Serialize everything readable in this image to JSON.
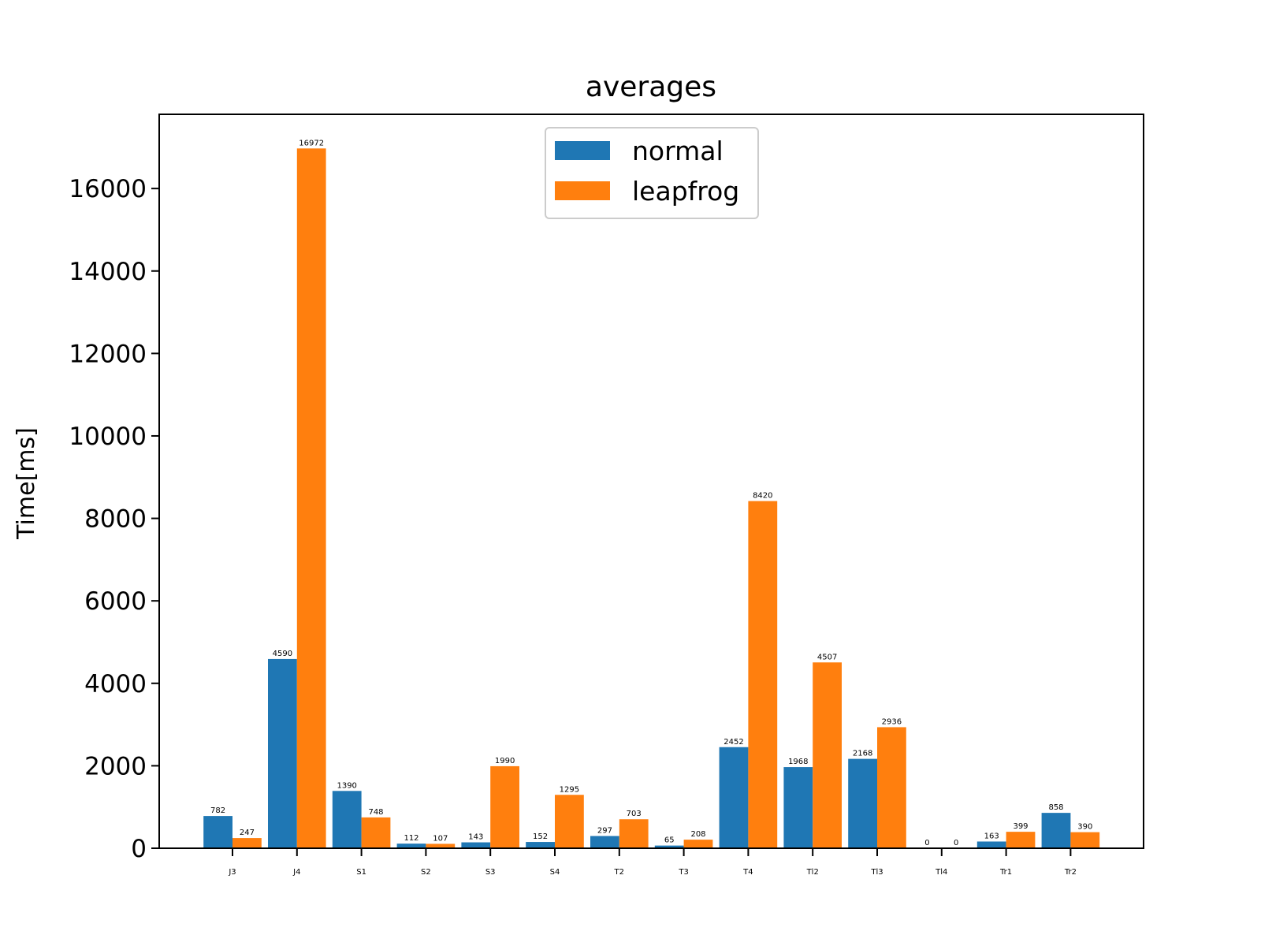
{
  "chart_data": {
    "type": "bar",
    "title": "averages",
    "xlabel": "",
    "ylabel": "Time[ms]",
    "ylim": [
      0,
      17800
    ],
    "yticks": [
      0,
      2000,
      4000,
      6000,
      8000,
      10000,
      12000,
      14000,
      16000
    ],
    "yticks_labels": [
      "0",
      "2000",
      "4000",
      "6000",
      "8000",
      "10000",
      "12000",
      "14000",
      "16000"
    ],
    "categories": [
      "J3",
      "J4",
      "S1",
      "S2",
      "S3",
      "S4",
      "T2",
      "T3",
      "T4",
      "Tl2",
      "Tl3",
      "Tl4",
      "Tr1",
      "Tr2"
    ],
    "series": [
      {
        "name": "normal",
        "color": "#1f77b4",
        "values": [
          782,
          4590,
          1390,
          112,
          143,
          152,
          297,
          65,
          2452,
          1968,
          2168,
          0,
          163,
          858
        ],
        "labels": [
          "782",
          "4590",
          "1390",
          "112",
          "143",
          "152",
          "297",
          "65",
          "2452",
          "1968",
          "2168",
          "0",
          "163",
          "858"
        ]
      },
      {
        "name": "leapfrog",
        "color": "#ff7f0e",
        "values": [
          247,
          16972,
          748,
          107,
          1990,
          1295,
          703,
          208,
          8420,
          4507,
          2936,
          0,
          399,
          390
        ],
        "labels": [
          "247",
          "16972",
          "748",
          "107",
          "1990",
          "1295",
          "703",
          "208",
          "8420",
          "4507",
          "2936",
          "0",
          "399",
          "390"
        ]
      }
    ],
    "grid": false,
    "legend_placement": "upper center"
  }
}
